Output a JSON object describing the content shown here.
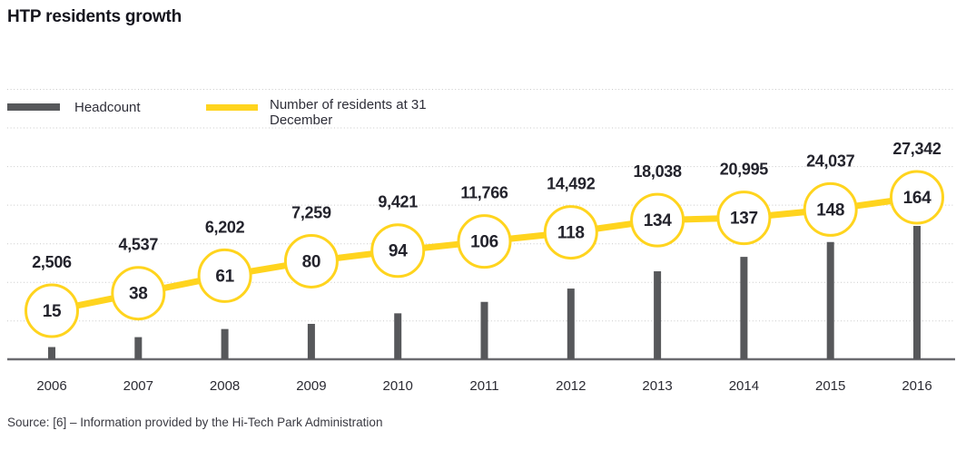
{
  "title": "HTP residents growth",
  "legend": {
    "items": [
      {
        "id": "headcount",
        "label": "Headcount",
        "swatch_color": "#57585b",
        "swatch_type": "bar"
      },
      {
        "id": "residents",
        "label": "Number of residents at 31 December",
        "swatch_color": "#ffd41e",
        "swatch_type": "line"
      }
    ]
  },
  "source": "Source: [6] – Information provided by the Hi-Tech Park Administration",
  "colors": {
    "bar": "#57585b",
    "line": "#ffd41e",
    "text_dark": "#23232c",
    "gridline": "#c9c9c9",
    "axis": "#6b6b70"
  },
  "chart_data": {
    "type": "combo",
    "categories": [
      "2006",
      "2007",
      "2008",
      "2009",
      "2010",
      "2011",
      "2012",
      "2013",
      "2014",
      "2015",
      "2016"
    ],
    "series": [
      {
        "name": "Headcount",
        "type": "bar",
        "color": "#57585b",
        "values": [
          2506,
          4537,
          6202,
          7259,
          9421,
          11766,
          14492,
          18038,
          20995,
          24037,
          27342
        ],
        "value_labels": [
          "2,506",
          "4,537",
          "6,202",
          "7,259",
          "9,421",
          "11,766",
          "14,492",
          "18,038",
          "20,995",
          "24,037",
          "27,342"
        ]
      },
      {
        "name": "Number of residents at 31 December",
        "type": "line",
        "marker": "circle",
        "color": "#ffd41e",
        "values": [
          15,
          38,
          61,
          80,
          94,
          106,
          118,
          134,
          137,
          148,
          164
        ]
      }
    ],
    "title": "HTP residents growth",
    "xlabel": "",
    "ylabel": "",
    "grid": true,
    "gridline_style": "dotted-horizontal",
    "legend_position": "top-left",
    "value_labels_shown": true
  }
}
